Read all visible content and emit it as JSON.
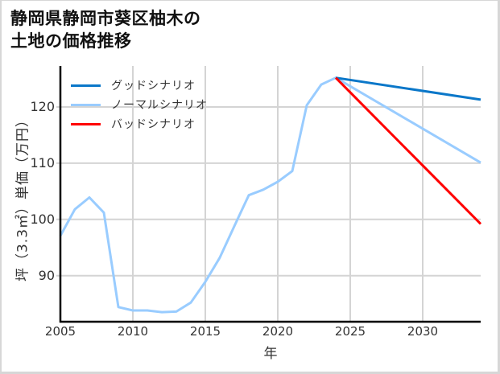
{
  "header": {
    "title_line1": "静岡県静岡市葵区柚木の",
    "title_line2": "土地の価格推移"
  },
  "chart_data": {
    "type": "line",
    "title": "静岡県静岡市葵区柚木の土地の価格推移",
    "xlabel": "年",
    "ylabel": "坪（3.3㎡）単価（万円）",
    "xlim": [
      2005,
      2034
    ],
    "ylim": [
      81.8,
      127.3
    ],
    "xticks": [
      2005,
      2010,
      2015,
      2020,
      2025,
      2030
    ],
    "yticks": [
      90,
      100,
      110,
      120
    ],
    "grid": true,
    "legend_position": "upper left",
    "series": [
      {
        "name": "グッドシナリオ",
        "color": "#0a77c9",
        "x": [
          2024,
          2034
        ],
        "values": [
          125.2,
          121.3
        ]
      },
      {
        "name": "ノーマルシナリオ",
        "color": "#99ccff",
        "x": [
          2005,
          2006,
          2007,
          2008,
          2009,
          2010,
          2011,
          2012,
          2013,
          2014,
          2015,
          2016,
          2017,
          2018,
          2019,
          2020,
          2021,
          2022,
          2023,
          2024,
          2034
        ],
        "values": [
          97.1,
          101.8,
          103.9,
          101.2,
          84.4,
          83.8,
          83.8,
          83.5,
          83.6,
          85.2,
          88.9,
          93.2,
          98.8,
          104.3,
          105.3,
          106.7,
          108.6,
          120.3,
          124.0,
          125.2,
          110.1
        ]
      },
      {
        "name": "バッドシナリオ",
        "color": "#ff0000",
        "x": [
          2024,
          2034
        ],
        "values": [
          125.2,
          99.2
        ]
      }
    ]
  }
}
